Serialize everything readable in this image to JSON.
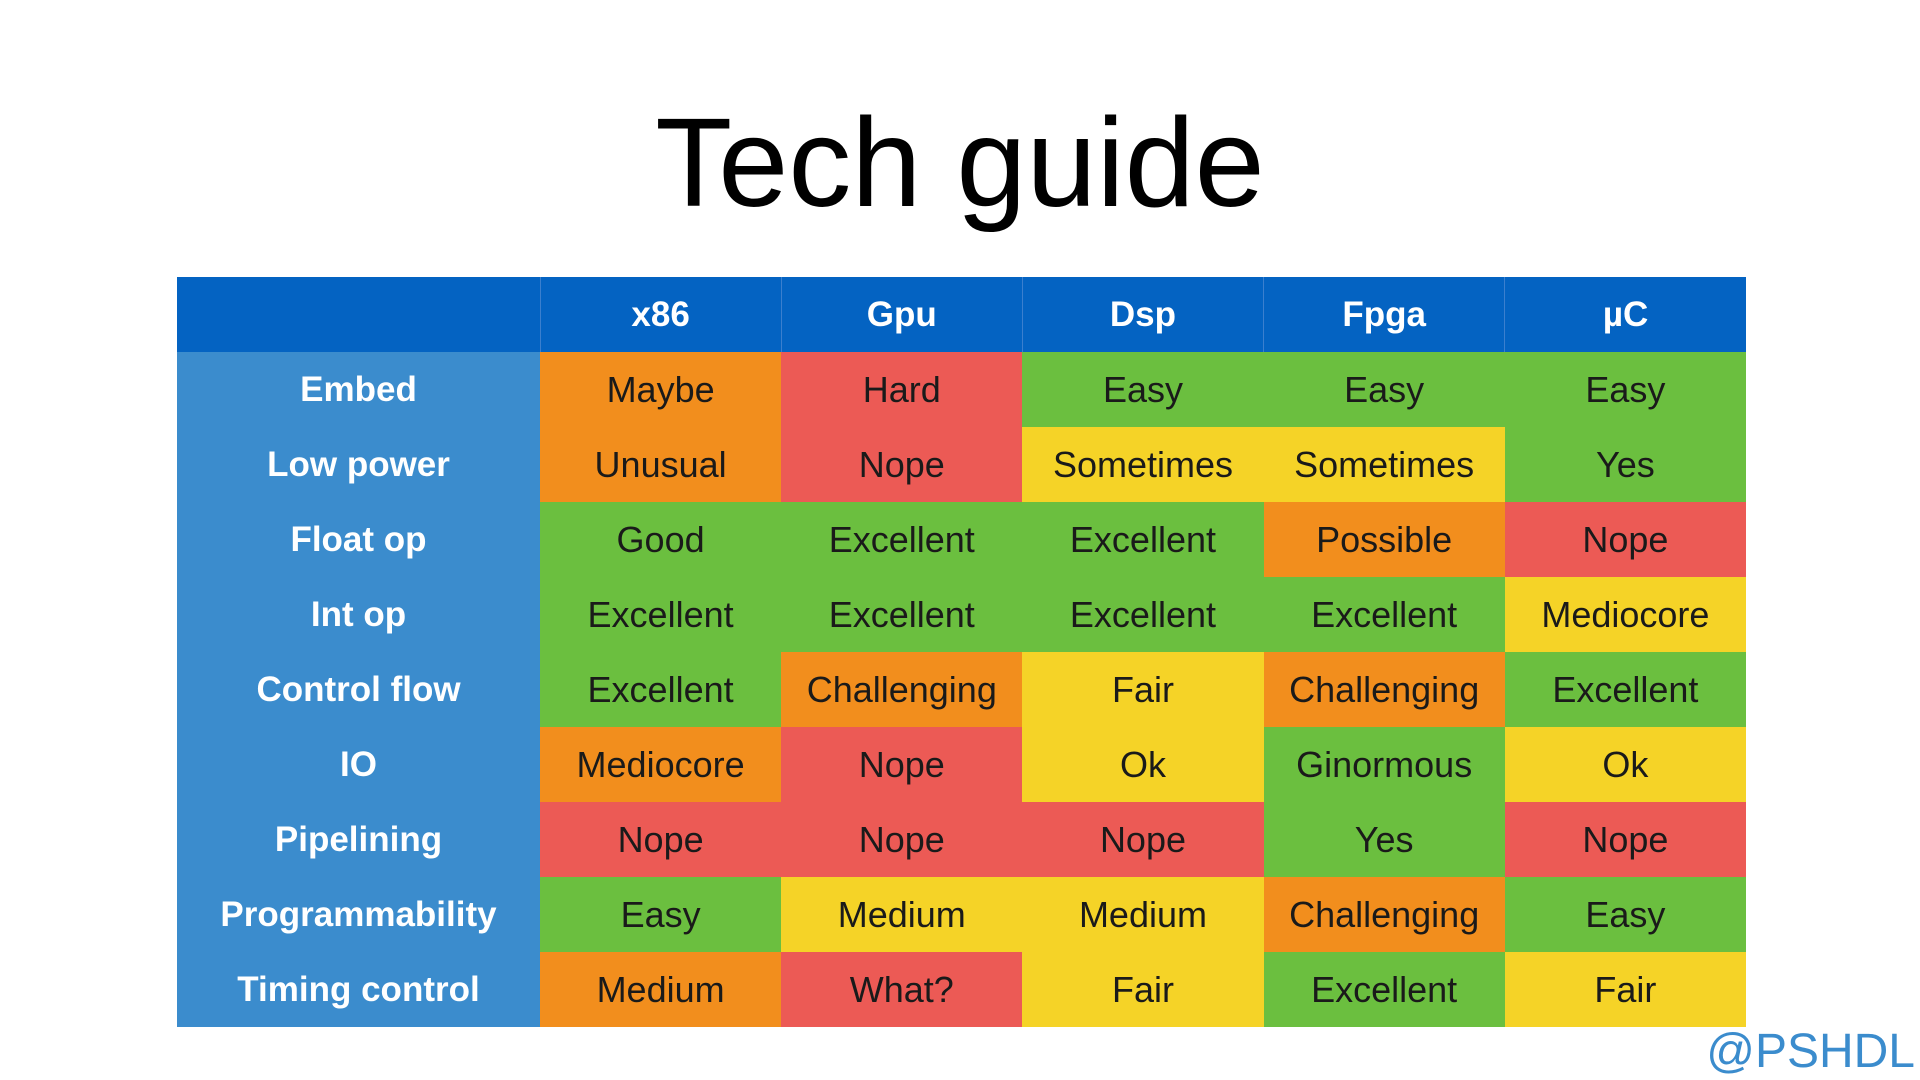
{
  "title": "Tech guide",
  "credit": "@PSHDL",
  "colors": {
    "header_bg": "#0463c2",
    "label_bg": "#3b8ccd",
    "green": "#6bbf3f",
    "red": "#ec5a55",
    "orange": "#f28e1d",
    "yellow": "#f5d327"
  },
  "table": {
    "corner": "",
    "columns": [
      "x86",
      "Gpu",
      "Dsp",
      "Fpga",
      "µC"
    ],
    "rows": [
      {
        "label": "Embed",
        "cells": [
          {
            "text": "Maybe",
            "status": "orange"
          },
          {
            "text": "Hard",
            "status": "red"
          },
          {
            "text": "Easy",
            "status": "green"
          },
          {
            "text": "Easy",
            "status": "green"
          },
          {
            "text": "Easy",
            "status": "green"
          }
        ]
      },
      {
        "label": "Low power",
        "cells": [
          {
            "text": "Unusual",
            "status": "orange"
          },
          {
            "text": "Nope",
            "status": "red"
          },
          {
            "text": "Sometimes",
            "status": "yellow"
          },
          {
            "text": "Sometimes",
            "status": "yellow"
          },
          {
            "text": "Yes",
            "status": "green"
          }
        ]
      },
      {
        "label": "Float op",
        "cells": [
          {
            "text": "Good",
            "status": "green"
          },
          {
            "text": "Excellent",
            "status": "green"
          },
          {
            "text": "Excellent",
            "status": "green"
          },
          {
            "text": "Possible",
            "status": "orange"
          },
          {
            "text": "Nope",
            "status": "red"
          }
        ]
      },
      {
        "label": "Int op",
        "cells": [
          {
            "text": "Excellent",
            "status": "green"
          },
          {
            "text": "Excellent",
            "status": "green"
          },
          {
            "text": "Excellent",
            "status": "green"
          },
          {
            "text": "Excellent",
            "status": "green"
          },
          {
            "text": "Mediocore",
            "status": "yellow"
          }
        ]
      },
      {
        "label": "Control flow",
        "cells": [
          {
            "text": "Excellent",
            "status": "green"
          },
          {
            "text": "Challenging",
            "status": "orange"
          },
          {
            "text": "Fair",
            "status": "yellow"
          },
          {
            "text": "Challenging",
            "status": "orange"
          },
          {
            "text": "Excellent",
            "status": "green"
          }
        ]
      },
      {
        "label": "IO",
        "cells": [
          {
            "text": "Mediocore",
            "status": "orange"
          },
          {
            "text": "Nope",
            "status": "red"
          },
          {
            "text": "Ok",
            "status": "yellow"
          },
          {
            "text": "Ginormous",
            "status": "green"
          },
          {
            "text": "Ok",
            "status": "yellow"
          }
        ]
      },
      {
        "label": "Pipelining",
        "cells": [
          {
            "text": "Nope",
            "status": "red"
          },
          {
            "text": "Nope",
            "status": "red"
          },
          {
            "text": "Nope",
            "status": "red"
          },
          {
            "text": "Yes",
            "status": "green"
          },
          {
            "text": "Nope",
            "status": "red"
          }
        ]
      },
      {
        "label": "Programmability",
        "cells": [
          {
            "text": "Easy",
            "status": "green"
          },
          {
            "text": "Medium",
            "status": "yellow"
          },
          {
            "text": "Medium",
            "status": "yellow"
          },
          {
            "text": "Challenging",
            "status": "orange"
          },
          {
            "text": "Easy",
            "status": "green"
          }
        ]
      },
      {
        "label": "Timing control",
        "cells": [
          {
            "text": "Medium",
            "status": "orange"
          },
          {
            "text": "What?",
            "status": "red"
          },
          {
            "text": "Fair",
            "status": "yellow"
          },
          {
            "text": "Excellent",
            "status": "green"
          },
          {
            "text": "Fair",
            "status": "yellow"
          }
        ]
      }
    ]
  }
}
